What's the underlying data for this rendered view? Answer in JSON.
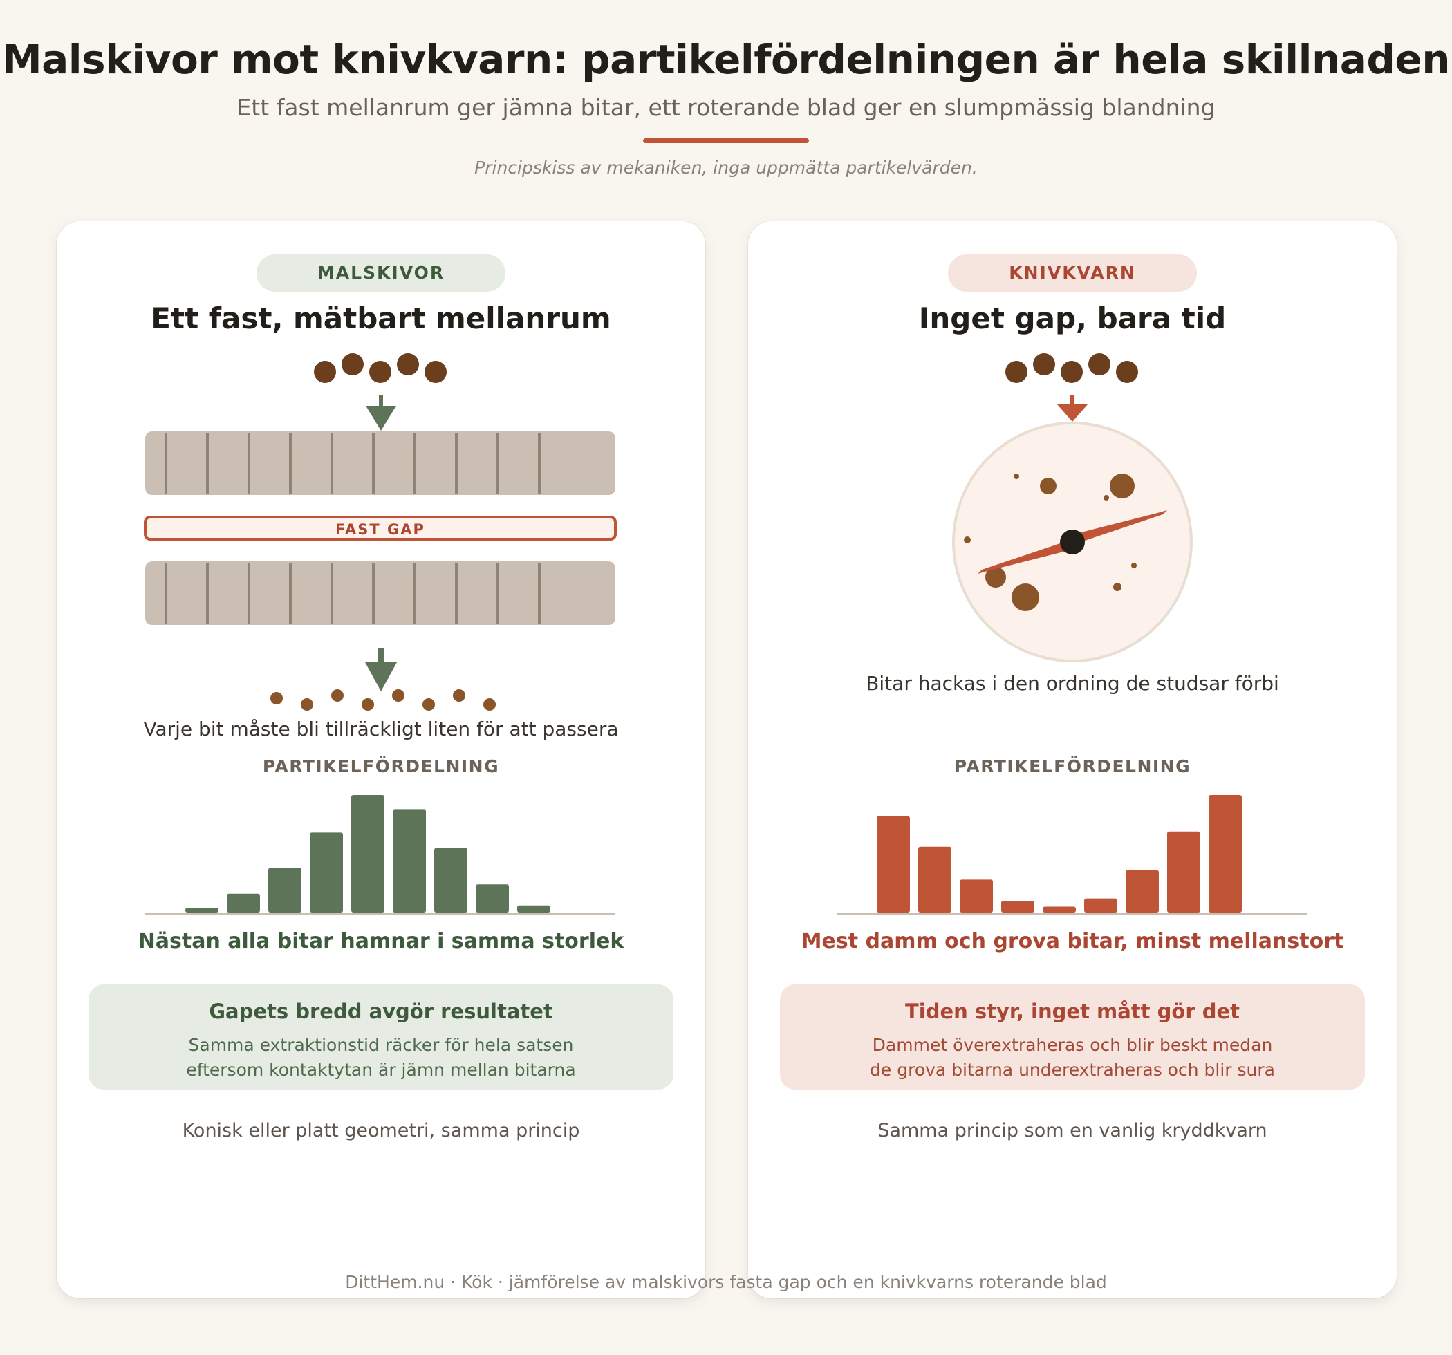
{
  "title": "Malskivor mot knivkvarn: partikelfördelningen är hela skillnaden",
  "subtitle": "Ett fast mellanrum ger jämna bitar, ett roterande blad ger en slumpmässig blandning",
  "note": "Principskiss av mekaniken, inga uppmätta partikelvärden.",
  "colors": {
    "background": "#f9f6f0",
    "accent": "#bf5436",
    "green": "#5e7459",
    "red": "#bf5436",
    "bean": "#6b3e1e",
    "burr": "#cbbfb3"
  },
  "left": {
    "badge": "MALSKIVOR",
    "heading": "Ett fast, mätbart mellanrum",
    "gap_label": "FAST GAP",
    "caption": "Varje bit måste bli tillräckligt liten för att passera",
    "dist_label": "PARTIKELFÖRDELNING",
    "distribution": [
      4,
      16,
      38,
      68,
      100,
      88,
      55,
      24,
      6
    ],
    "verdict": "Nästan alla bitar hamnar i samma storlek",
    "box_title": "Gapets bredd avgör resultatet",
    "box_line1": "Samma extraktionstid räcker för hela satsen",
    "box_line2": "eftersom kontaktytan är jämn mellan bitarna",
    "footnote": "Konisk eller platt geometri, samma princip"
  },
  "right": {
    "badge": "KNIVKVARN",
    "heading": "Inget gap, bara tid",
    "caption": "Bitar hackas i den ordning de studsar förbi",
    "dist_label": "PARTIKELFÖRDELNING",
    "distribution": [
      82,
      56,
      28,
      10,
      5,
      12,
      36,
      69,
      100
    ],
    "verdict": "Mest damm och grova bitar, minst mellanstort",
    "box_title": "Tiden styr, inget mått gör det",
    "box_line1": "Dammet överextraheras och blir beskt medan",
    "box_line2": "de grova bitarna underextraheras och blir sura",
    "footnote": "Samma princip som en vanlig kryddkvarn"
  },
  "footer": "DittHem.nu · Kök · jämförelse av malskivors fasta gap och en knivkvarns roterande blad"
}
